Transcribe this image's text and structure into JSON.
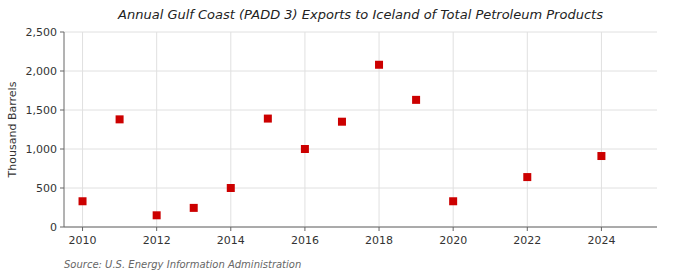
{
  "chart_data": {
    "type": "scatter",
    "title": "Annual Gulf Coast (PADD 3) Exports to Iceland of Total Petroleum Products",
    "ylabel": "Thousand Barrels",
    "annotation": "Source: U.S. Energy Information Administration",
    "x": [
      2010,
      2011,
      2012,
      2013,
      2014,
      2015,
      2016,
      2017,
      2018,
      2019,
      2020,
      2022,
      2024
    ],
    "values": [
      330,
      1380,
      150,
      245,
      500,
      1390,
      1000,
      1350,
      2080,
      1630,
      330,
      640,
      910
    ],
    "xlim": [
      2009.5,
      2025.5
    ],
    "xticks": [
      2010,
      2012,
      2014,
      2016,
      2018,
      2020,
      2022,
      2024
    ],
    "ylim": [
      0,
      2500
    ],
    "yticks": [
      0,
      500,
      {
        "value": 1000,
        "label": "1,000"
      },
      {
        "value": 1500,
        "label": "1,500"
      },
      {
        "value": 2000,
        "label": "2,000"
      },
      {
        "value": 2500,
        "label": "2,500"
      }
    ],
    "color": "#cc0000",
    "marker": "square",
    "grid": true
  }
}
